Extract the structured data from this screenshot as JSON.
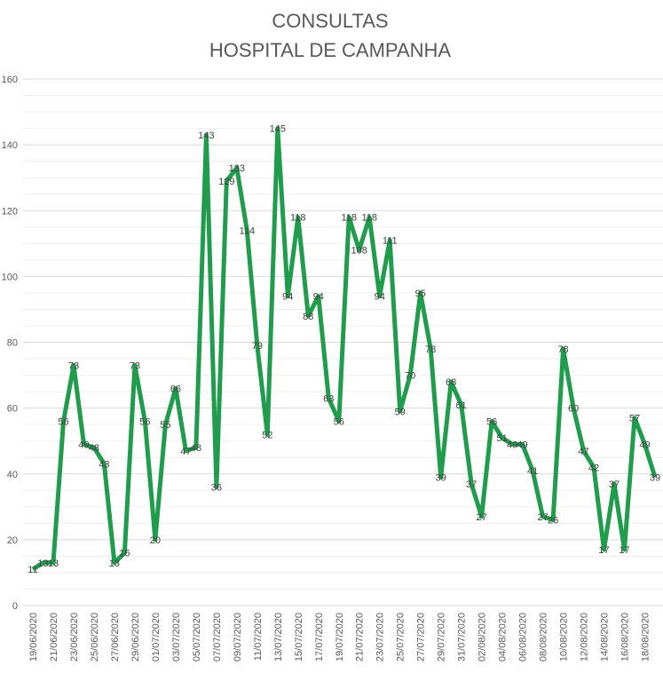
{
  "chart_data": {
    "type": "line",
    "title": [
      "CONSULTAS",
      "HOSPITAL DE CAMPANHA"
    ],
    "xlabel": "",
    "ylabel": "",
    "ylim": [
      0,
      160
    ],
    "yticks": [
      0,
      20,
      40,
      60,
      80,
      100,
      120,
      140,
      160
    ],
    "grid": true,
    "legend": "none",
    "line_color": "#1f9d4c",
    "x": [
      "19/06/2020",
      "20/06/2020",
      "21/06/2020",
      "22/06/2020",
      "23/06/2020",
      "24/06/2020",
      "25/06/2020",
      "26/06/2020",
      "27/06/2020",
      "28/06/2020",
      "29/06/2020",
      "30/06/2020",
      "01/07/2020",
      "02/07/2020",
      "03/07/2020",
      "04/07/2020",
      "05/07/2020",
      "06/07/2020",
      "07/07/2020",
      "08/07/2020",
      "09/07/2020",
      "10/07/2020",
      "11/07/2020",
      "12/07/2020",
      "13/07/2020",
      "14/07/2020",
      "15/07/2020",
      "16/07/2020",
      "17/07/2020",
      "18/07/2020",
      "19/07/2020",
      "20/07/2020",
      "21/07/2020",
      "22/07/2020",
      "23/07/2020",
      "24/07/2020",
      "25/07/2020",
      "26/07/2020",
      "27/07/2020",
      "28/07/2020",
      "29/07/2020",
      "30/07/2020",
      "31/07/2020",
      "01/08/2020",
      "02/08/2020",
      "03/08/2020",
      "04/08/2020",
      "05/08/2020",
      "06/08/2020",
      "07/08/2020",
      "08/08/2020",
      "09/08/2020",
      "10/08/2020",
      "11/08/2020",
      "12/08/2020",
      "13/08/2020",
      "14/08/2020",
      "15/08/2020",
      "16/08/2020",
      "17/08/2020",
      "18/08/2020",
      "19/08/2020"
    ],
    "xtick_step": 2,
    "values": [
      11,
      13,
      13,
      56,
      73,
      49,
      48,
      43,
      13,
      16,
      73,
      56,
      20,
      55,
      66,
      47,
      48,
      143,
      36,
      129,
      133,
      114,
      79,
      52,
      145,
      94,
      118,
      88,
      94,
      63,
      56,
      118,
      108,
      118,
      94,
      111,
      59,
      70,
      95,
      78,
      39,
      68,
      61,
      37,
      27,
      56,
      51,
      49,
      49,
      41,
      27,
      26,
      78,
      60,
      47,
      42,
      17,
      37,
      17,
      57,
      49,
      39
    ]
  }
}
